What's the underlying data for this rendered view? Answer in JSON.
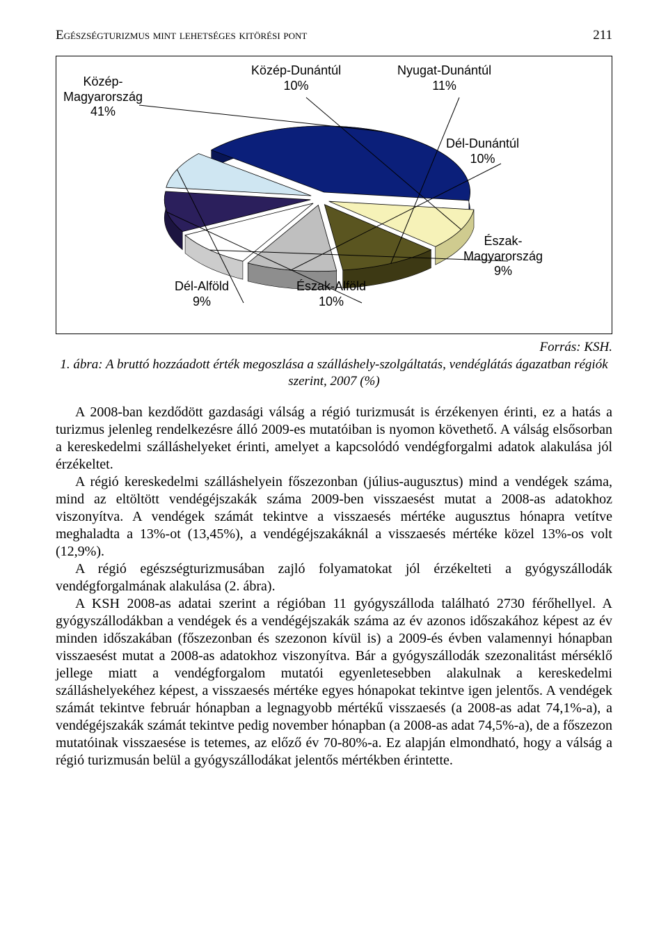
{
  "header": {
    "title": "Egészségturizmus mint lehetséges kitörési pont",
    "page_number": "211"
  },
  "chart": {
    "type": "pie",
    "background_color": "#ffffff",
    "border_color": "#000000",
    "slices": [
      {
        "label_top": "Közép-",
        "label_bottom": "Magyarország",
        "pct": "41%",
        "value": 41,
        "fill": "#0b1f7a",
        "side_fill": "#081555"
      },
      {
        "label_top": "Közép-Dunántúl",
        "label_bottom": "",
        "pct": "10%",
        "value": 10,
        "fill": "#f6f2b8",
        "side_fill": "#cfcb8f"
      },
      {
        "label_top": "Nyugat-Dunántúl",
        "label_bottom": "",
        "pct": "11%",
        "value": 11,
        "fill": "#5a5520",
        "side_fill": "#3d3914"
      },
      {
        "label_top": "Dél-Dunántúl",
        "label_bottom": "",
        "pct": "10%",
        "value": 10,
        "fill": "#bfbfbf",
        "side_fill": "#8e8e8e"
      },
      {
        "label_top": "Észak-",
        "label_bottom": "Magyarország",
        "pct": "9%",
        "value": 9,
        "fill": "#ffffff",
        "side_fill": "#cccccc"
      },
      {
        "label_top": "Észak-Alföld",
        "label_bottom": "",
        "pct": "10%",
        "value": 10,
        "fill": "#2b1f5c",
        "side_fill": "#1c1440"
      },
      {
        "label_top": "Dél-Alföld",
        "label_bottom": "",
        "pct": "9%",
        "value": 9,
        "fill": "#cfe6f2",
        "side_fill": "#a7c9d9"
      }
    ],
    "label_font_family": "Arial",
    "label_font_size_pt": 14
  },
  "source": "Forrás: KSH.",
  "caption": {
    "num": "1. ábra:",
    "text": "A bruttó hozzáadott érték megoszlása a szálláshely-szolgáltatás, vendéglátás ágazatban régiók szerint, 2007 (%)"
  },
  "paragraphs": [
    "A 2008-ban kezdődött gazdasági válság a régió turizmusát is érzékenyen érinti, ez a hatás a turizmus jelenleg rendelkezésre álló 2009-es mutatóiban is nyomon követhető. A válság elsősorban a kereskedelmi szálláshelyeket érinti, amelyet a kapcsolódó vendégforgalmi adatok alakulása jól érzékeltet.",
    "A régió kereskedelmi szálláshelyein főszezonban (július-augusztus) mind a vendégek száma, mind az eltöltött vendégéjszakák száma 2009-ben visszaesést mutat a 2008-as adatokhoz viszonyítva. A vendégek számát tekintve a visszaesés mértéke augusztus hónapra vetítve meghaladta a 13%-ot (13,45%), a vendégéjszakáknál a visszaesés mértéke közel 13%-os volt (12,9%).",
    "A régió egészségturizmusában zajló folyamatokat jól érzékelteti a gyógyszállodák vendégforgalmának alakulása (2. ábra).",
    "A KSH 2008-as adatai szerint a régióban 11 gyógyszálloda található 2730 férőhellyel. A gyógyszállodákban a vendégek és a vendégéjszakák száma az év azonos időszakához képest az év minden időszakában (főszezonban és szezonon kívül is) a 2009-és évben valamennyi hónapban visszaesést mutat a 2008-as adatokhoz viszonyítva. Bár a gyógyszállodák szezonalitást mérséklő jellege miatt a vendégforgalom mutatói egyenletesebben alakulnak a kereskedelmi szálláshelyekéhez képest, a visszaesés mértéke egyes hónapokat tekintve igen jelentős. A vendégek számát tekintve február hónapban a legnagyobb mértékű visszaesés (a 2008-as adat 74,1%-a), a vendégéjszakák számát tekintve pedig november hónapban (a 2008-as adat 74,5%-a), de a főszezon mutatóinak visszaesése is tetemes, az előző év 70-80%-a. Ez alapján elmondható, hogy a válság a régió turizmusán belül a gyógyszállodákat jelentős mértékben érintette."
  ]
}
